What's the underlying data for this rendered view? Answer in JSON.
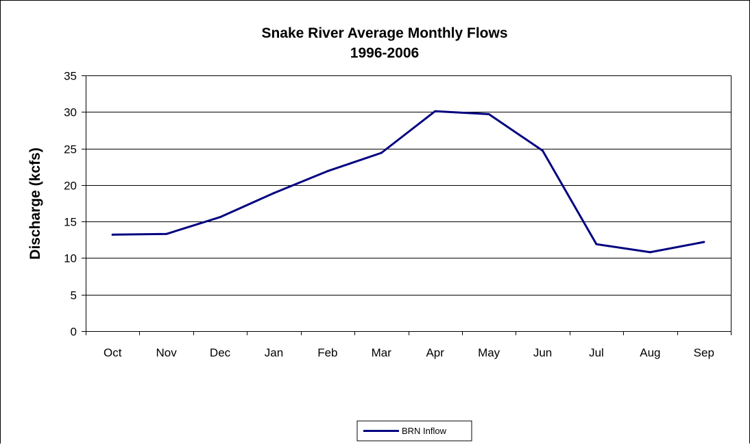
{
  "chart_data": {
    "type": "line",
    "title": "Snake River Average Monthly Flows",
    "subtitle": "1996-2006",
    "xlabel": "",
    "ylabel": "Discharge (kcfs)",
    "categories": [
      "Oct",
      "Nov",
      "Dec",
      "Jan",
      "Feb",
      "Mar",
      "Apr",
      "May",
      "Jun",
      "Jul",
      "Aug",
      "Sep"
    ],
    "ylim": [
      0,
      35
    ],
    "yticks": [
      0,
      5,
      10,
      15,
      20,
      25,
      30,
      35
    ],
    "grid": true,
    "legend_position": "bottom",
    "series": [
      {
        "name": "BRN Inflow",
        "color": "#000080",
        "values": [
          13.2,
          13.3,
          15.6,
          18.9,
          21.9,
          24.4,
          30.1,
          29.7,
          24.7,
          11.9,
          10.8,
          12.2
        ]
      }
    ]
  }
}
